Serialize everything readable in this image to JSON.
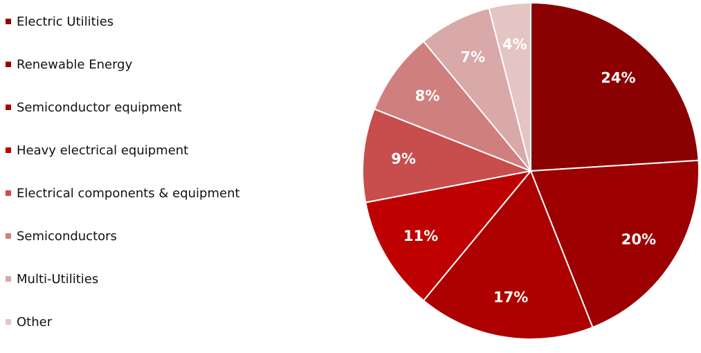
{
  "chart_data": {
    "type": "pie",
    "categories": [
      "Electric Utilities",
      "Renewable Energy",
      "Semiconductor equipment",
      "Heavy electrical equipment",
      "Electrical components & equipment",
      "Semiconductors",
      "Multi-Utilities",
      "Other"
    ],
    "values": [
      24,
      20,
      17,
      11,
      9,
      8,
      7,
      4
    ],
    "data_labels": [
      "24%",
      "20%",
      "17%",
      "11%",
      "9%",
      "8%",
      "7%",
      "4%"
    ],
    "colors": [
      "#8b0000",
      "#9c0000",
      "#ad0000",
      "#bf0000",
      "#c84d4d",
      "#d07f7f",
      "#d9a8a8",
      "#e5c4c4"
    ],
    "legend_position": "left"
  }
}
